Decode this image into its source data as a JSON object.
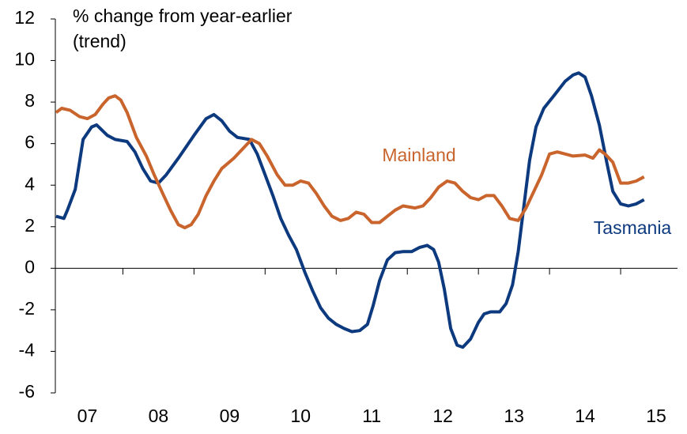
{
  "chart_data": {
    "type": "line",
    "ylabel": [
      "% change from year-earlier",
      "(trend)"
    ],
    "xlim": [
      2007.05,
      2015.8
    ],
    "xticks": [
      {
        "value": 2007.5,
        "label": "07"
      },
      {
        "value": 2008.5,
        "label": "08"
      },
      {
        "value": 2009.5,
        "label": "09"
      },
      {
        "value": 2010.5,
        "label": "10"
      },
      {
        "value": 2011.5,
        "label": "11"
      },
      {
        "value": 2012.5,
        "label": "12"
      },
      {
        "value": 2013.5,
        "label": "13"
      },
      {
        "value": 2014.5,
        "label": "14"
      },
      {
        "value": 2015.5,
        "label": "15"
      }
    ],
    "xtick_marks": [
      2008,
      2009,
      2010,
      2011,
      2012,
      2013,
      2014,
      2015
    ],
    "ylim": [
      -6,
      12
    ],
    "yticks": [
      -6,
      -4,
      -2,
      0,
      2,
      4,
      6,
      8,
      10,
      12
    ],
    "series": [
      {
        "name": "Tasmania",
        "color": "#0d3a7e",
        "x": [
          2007.06,
          2007.17,
          2007.22,
          2007.33,
          2007.44,
          2007.56,
          2007.63,
          2007.78,
          2007.89,
          2008.06,
          2008.17,
          2008.28,
          2008.39,
          2008.5,
          2008.61,
          2008.78,
          2009.0,
          2009.17,
          2009.28,
          2009.39,
          2009.5,
          2009.61,
          2009.78,
          2009.89,
          2010.0,
          2010.11,
          2010.22,
          2010.33,
          2010.44,
          2010.56,
          2010.67,
          2010.78,
          2010.89,
          2011.0,
          2011.11,
          2011.22,
          2011.33,
          2011.44,
          2011.52,
          2011.61,
          2011.72,
          2011.83,
          2011.94,
          2012.06,
          2012.17,
          2012.28,
          2012.37,
          2012.44,
          2012.52,
          2012.61,
          2012.7,
          2012.78,
          2012.89,
          2013.0,
          2013.08,
          2013.17,
          2013.3,
          2013.39,
          2013.48,
          2013.56,
          2013.64,
          2013.72,
          2013.81,
          2013.92,
          2014.06,
          2014.22,
          2014.33,
          2014.41,
          2014.5,
          2014.59,
          2014.7,
          2014.81,
          2014.89,
          2015.0,
          2015.11,
          2015.22,
          2015.33
        ],
        "values": [
          2.5,
          2.4,
          2.8,
          3.8,
          6.2,
          6.8,
          6.9,
          6.4,
          6.2,
          6.1,
          5.6,
          4.8,
          4.2,
          4.1,
          4.5,
          5.3,
          6.4,
          7.2,
          7.4,
          7.1,
          6.6,
          6.3,
          6.2,
          5.5,
          4.5,
          3.5,
          2.4,
          1.6,
          0.9,
          -0.2,
          -1.1,
          -1.9,
          -2.4,
          -2.7,
          -2.9,
          -3.05,
          -3.0,
          -2.7,
          -1.8,
          -0.6,
          0.4,
          0.75,
          0.8,
          0.8,
          1.0,
          1.1,
          0.9,
          0.3,
          -1.0,
          -2.9,
          -3.7,
          -3.8,
          -3.4,
          -2.6,
          -2.2,
          -2.1,
          -2.1,
          -1.7,
          -0.8,
          0.8,
          3.0,
          5.2,
          6.8,
          7.7,
          8.3,
          9.0,
          9.3,
          9.4,
          9.2,
          8.3,
          6.9,
          5.0,
          3.7,
          3.1,
          3.0,
          3.1,
          3.3
        ]
      },
      {
        "name": "Mainland",
        "color": "#c8642c",
        "x": [
          2007.06,
          2007.14,
          2007.26,
          2007.39,
          2007.5,
          2007.61,
          2007.72,
          2007.8,
          2007.89,
          2007.97,
          2008.06,
          2008.19,
          2008.33,
          2008.44,
          2008.56,
          2008.67,
          2008.78,
          2008.87,
          2008.96,
          2009.06,
          2009.17,
          2009.28,
          2009.39,
          2009.56,
          2009.7,
          2009.81,
          2009.92,
          2010.03,
          2010.17,
          2010.28,
          2010.39,
          2010.5,
          2010.61,
          2010.72,
          2010.83,
          2010.94,
          2011.06,
          2011.17,
          2011.28,
          2011.39,
          2011.5,
          2011.61,
          2011.72,
          2011.83,
          2011.94,
          2012.11,
          2012.22,
          2012.33,
          2012.44,
          2012.56,
          2012.67,
          2012.78,
          2012.89,
          2013.0,
          2013.11,
          2013.22,
          2013.33,
          2013.44,
          2013.56,
          2013.67,
          2013.78,
          2013.89,
          2014.0,
          2014.11,
          2014.22,
          2014.33,
          2014.5,
          2014.61,
          2014.7,
          2014.78,
          2014.89,
          2015.0,
          2015.11,
          2015.22,
          2015.33
        ],
        "values": [
          7.5,
          7.7,
          7.6,
          7.3,
          7.2,
          7.4,
          7.9,
          8.2,
          8.3,
          8.1,
          7.5,
          6.3,
          5.4,
          4.5,
          3.6,
          2.8,
          2.1,
          1.95,
          2.1,
          2.6,
          3.5,
          4.2,
          4.8,
          5.3,
          5.8,
          6.2,
          6.0,
          5.4,
          4.5,
          4.0,
          4.0,
          4.2,
          4.1,
          3.6,
          3.0,
          2.5,
          2.3,
          2.4,
          2.7,
          2.6,
          2.2,
          2.2,
          2.5,
          2.8,
          3.0,
          2.9,
          3.0,
          3.4,
          3.9,
          4.2,
          4.1,
          3.7,
          3.4,
          3.3,
          3.5,
          3.5,
          3.0,
          2.4,
          2.3,
          2.9,
          3.7,
          4.5,
          5.5,
          5.6,
          5.5,
          5.4,
          5.45,
          5.3,
          5.7,
          5.5,
          5.1,
          4.1,
          4.1,
          4.2,
          4.4
        ]
      }
    ]
  }
}
